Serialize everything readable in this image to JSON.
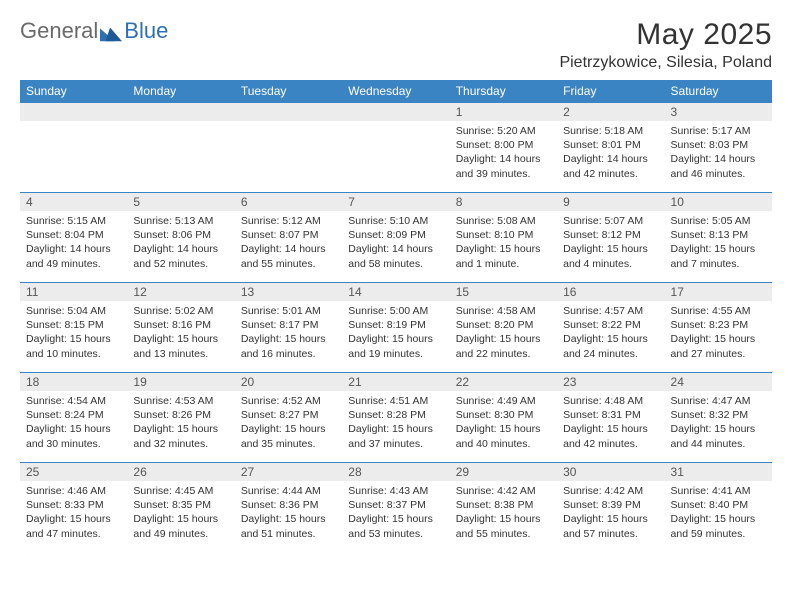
{
  "logo": {
    "text1": "General",
    "text2": "Blue"
  },
  "title": "May 2025",
  "location": "Pietrzykowice, Silesia, Poland",
  "colors": {
    "header_bg": "#3b84c4",
    "header_text": "#ffffff",
    "daynum_bg": "#ececec",
    "border": "#3b84c4",
    "logo_gray": "#6a6a6a",
    "logo_blue": "#2f6fb3"
  },
  "weekdays": [
    "Sunday",
    "Monday",
    "Tuesday",
    "Wednesday",
    "Thursday",
    "Friday",
    "Saturday"
  ],
  "weeks": [
    [
      null,
      null,
      null,
      null,
      {
        "n": "1",
        "sr": "Sunrise: 5:20 AM",
        "ss": "Sunset: 8:00 PM",
        "dl": "Daylight: 14 hours and 39 minutes."
      },
      {
        "n": "2",
        "sr": "Sunrise: 5:18 AM",
        "ss": "Sunset: 8:01 PM",
        "dl": "Daylight: 14 hours and 42 minutes."
      },
      {
        "n": "3",
        "sr": "Sunrise: 5:17 AM",
        "ss": "Sunset: 8:03 PM",
        "dl": "Daylight: 14 hours and 46 minutes."
      }
    ],
    [
      {
        "n": "4",
        "sr": "Sunrise: 5:15 AM",
        "ss": "Sunset: 8:04 PM",
        "dl": "Daylight: 14 hours and 49 minutes."
      },
      {
        "n": "5",
        "sr": "Sunrise: 5:13 AM",
        "ss": "Sunset: 8:06 PM",
        "dl": "Daylight: 14 hours and 52 minutes."
      },
      {
        "n": "6",
        "sr": "Sunrise: 5:12 AM",
        "ss": "Sunset: 8:07 PM",
        "dl": "Daylight: 14 hours and 55 minutes."
      },
      {
        "n": "7",
        "sr": "Sunrise: 5:10 AM",
        "ss": "Sunset: 8:09 PM",
        "dl": "Daylight: 14 hours and 58 minutes."
      },
      {
        "n": "8",
        "sr": "Sunrise: 5:08 AM",
        "ss": "Sunset: 8:10 PM",
        "dl": "Daylight: 15 hours and 1 minute."
      },
      {
        "n": "9",
        "sr": "Sunrise: 5:07 AM",
        "ss": "Sunset: 8:12 PM",
        "dl": "Daylight: 15 hours and 4 minutes."
      },
      {
        "n": "10",
        "sr": "Sunrise: 5:05 AM",
        "ss": "Sunset: 8:13 PM",
        "dl": "Daylight: 15 hours and 7 minutes."
      }
    ],
    [
      {
        "n": "11",
        "sr": "Sunrise: 5:04 AM",
        "ss": "Sunset: 8:15 PM",
        "dl": "Daylight: 15 hours and 10 minutes."
      },
      {
        "n": "12",
        "sr": "Sunrise: 5:02 AM",
        "ss": "Sunset: 8:16 PM",
        "dl": "Daylight: 15 hours and 13 minutes."
      },
      {
        "n": "13",
        "sr": "Sunrise: 5:01 AM",
        "ss": "Sunset: 8:17 PM",
        "dl": "Daylight: 15 hours and 16 minutes."
      },
      {
        "n": "14",
        "sr": "Sunrise: 5:00 AM",
        "ss": "Sunset: 8:19 PM",
        "dl": "Daylight: 15 hours and 19 minutes."
      },
      {
        "n": "15",
        "sr": "Sunrise: 4:58 AM",
        "ss": "Sunset: 8:20 PM",
        "dl": "Daylight: 15 hours and 22 minutes."
      },
      {
        "n": "16",
        "sr": "Sunrise: 4:57 AM",
        "ss": "Sunset: 8:22 PM",
        "dl": "Daylight: 15 hours and 24 minutes."
      },
      {
        "n": "17",
        "sr": "Sunrise: 4:55 AM",
        "ss": "Sunset: 8:23 PM",
        "dl": "Daylight: 15 hours and 27 minutes."
      }
    ],
    [
      {
        "n": "18",
        "sr": "Sunrise: 4:54 AM",
        "ss": "Sunset: 8:24 PM",
        "dl": "Daylight: 15 hours and 30 minutes."
      },
      {
        "n": "19",
        "sr": "Sunrise: 4:53 AM",
        "ss": "Sunset: 8:26 PM",
        "dl": "Daylight: 15 hours and 32 minutes."
      },
      {
        "n": "20",
        "sr": "Sunrise: 4:52 AM",
        "ss": "Sunset: 8:27 PM",
        "dl": "Daylight: 15 hours and 35 minutes."
      },
      {
        "n": "21",
        "sr": "Sunrise: 4:51 AM",
        "ss": "Sunset: 8:28 PM",
        "dl": "Daylight: 15 hours and 37 minutes."
      },
      {
        "n": "22",
        "sr": "Sunrise: 4:49 AM",
        "ss": "Sunset: 8:30 PM",
        "dl": "Daylight: 15 hours and 40 minutes."
      },
      {
        "n": "23",
        "sr": "Sunrise: 4:48 AM",
        "ss": "Sunset: 8:31 PM",
        "dl": "Daylight: 15 hours and 42 minutes."
      },
      {
        "n": "24",
        "sr": "Sunrise: 4:47 AM",
        "ss": "Sunset: 8:32 PM",
        "dl": "Daylight: 15 hours and 44 minutes."
      }
    ],
    [
      {
        "n": "25",
        "sr": "Sunrise: 4:46 AM",
        "ss": "Sunset: 8:33 PM",
        "dl": "Daylight: 15 hours and 47 minutes."
      },
      {
        "n": "26",
        "sr": "Sunrise: 4:45 AM",
        "ss": "Sunset: 8:35 PM",
        "dl": "Daylight: 15 hours and 49 minutes."
      },
      {
        "n": "27",
        "sr": "Sunrise: 4:44 AM",
        "ss": "Sunset: 8:36 PM",
        "dl": "Daylight: 15 hours and 51 minutes."
      },
      {
        "n": "28",
        "sr": "Sunrise: 4:43 AM",
        "ss": "Sunset: 8:37 PM",
        "dl": "Daylight: 15 hours and 53 minutes."
      },
      {
        "n": "29",
        "sr": "Sunrise: 4:42 AM",
        "ss": "Sunset: 8:38 PM",
        "dl": "Daylight: 15 hours and 55 minutes."
      },
      {
        "n": "30",
        "sr": "Sunrise: 4:42 AM",
        "ss": "Sunset: 8:39 PM",
        "dl": "Daylight: 15 hours and 57 minutes."
      },
      {
        "n": "31",
        "sr": "Sunrise: 4:41 AM",
        "ss": "Sunset: 8:40 PM",
        "dl": "Daylight: 15 hours and 59 minutes."
      }
    ]
  ]
}
